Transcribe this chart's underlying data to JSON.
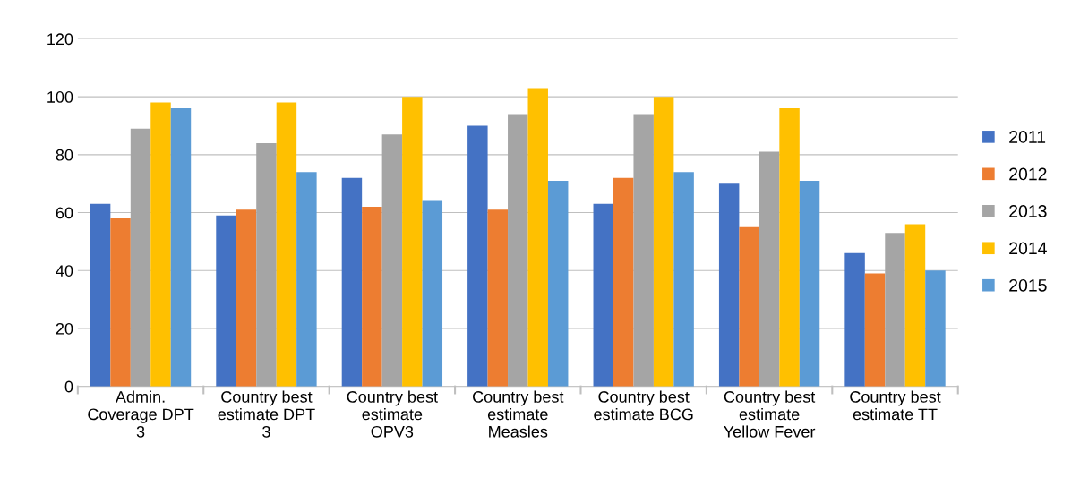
{
  "chart_data": {
    "type": "bar",
    "categories": [
      "Admin.\nCoverage DPT\n3",
      "Country best\nestimate DPT\n3",
      "Country best\nestimate\nOPV3",
      "Country best\nestimate\nMeasles",
      "Country best\nestimate BCG",
      "Country best\nestimate\nYellow Fever",
      "Country best\nestimate TT"
    ],
    "series": [
      {
        "name": "2011",
        "color": "#4472c4",
        "values": [
          63,
          59,
          72,
          90,
          63,
          70,
          46
        ]
      },
      {
        "name": "2012",
        "color": "#ed7d31",
        "values": [
          58,
          61,
          62,
          61,
          72,
          55,
          39
        ]
      },
      {
        "name": "2013",
        "color": "#a5a5a5",
        "values": [
          89,
          84,
          87,
          94,
          94,
          81,
          53
        ]
      },
      {
        "name": "2014",
        "color": "#ffc000",
        "values": [
          98,
          98,
          100,
          103,
          100,
          96,
          56
        ]
      },
      {
        "name": "2015",
        "color": "#5b9bd5",
        "values": [
          96,
          74,
          64,
          71,
          74,
          71,
          40
        ]
      }
    ],
    "ylim": [
      0,
      120
    ],
    "yticks": [
      0,
      20,
      40,
      60,
      80,
      100,
      120
    ],
    "grid": "y",
    "legend": "right"
  }
}
